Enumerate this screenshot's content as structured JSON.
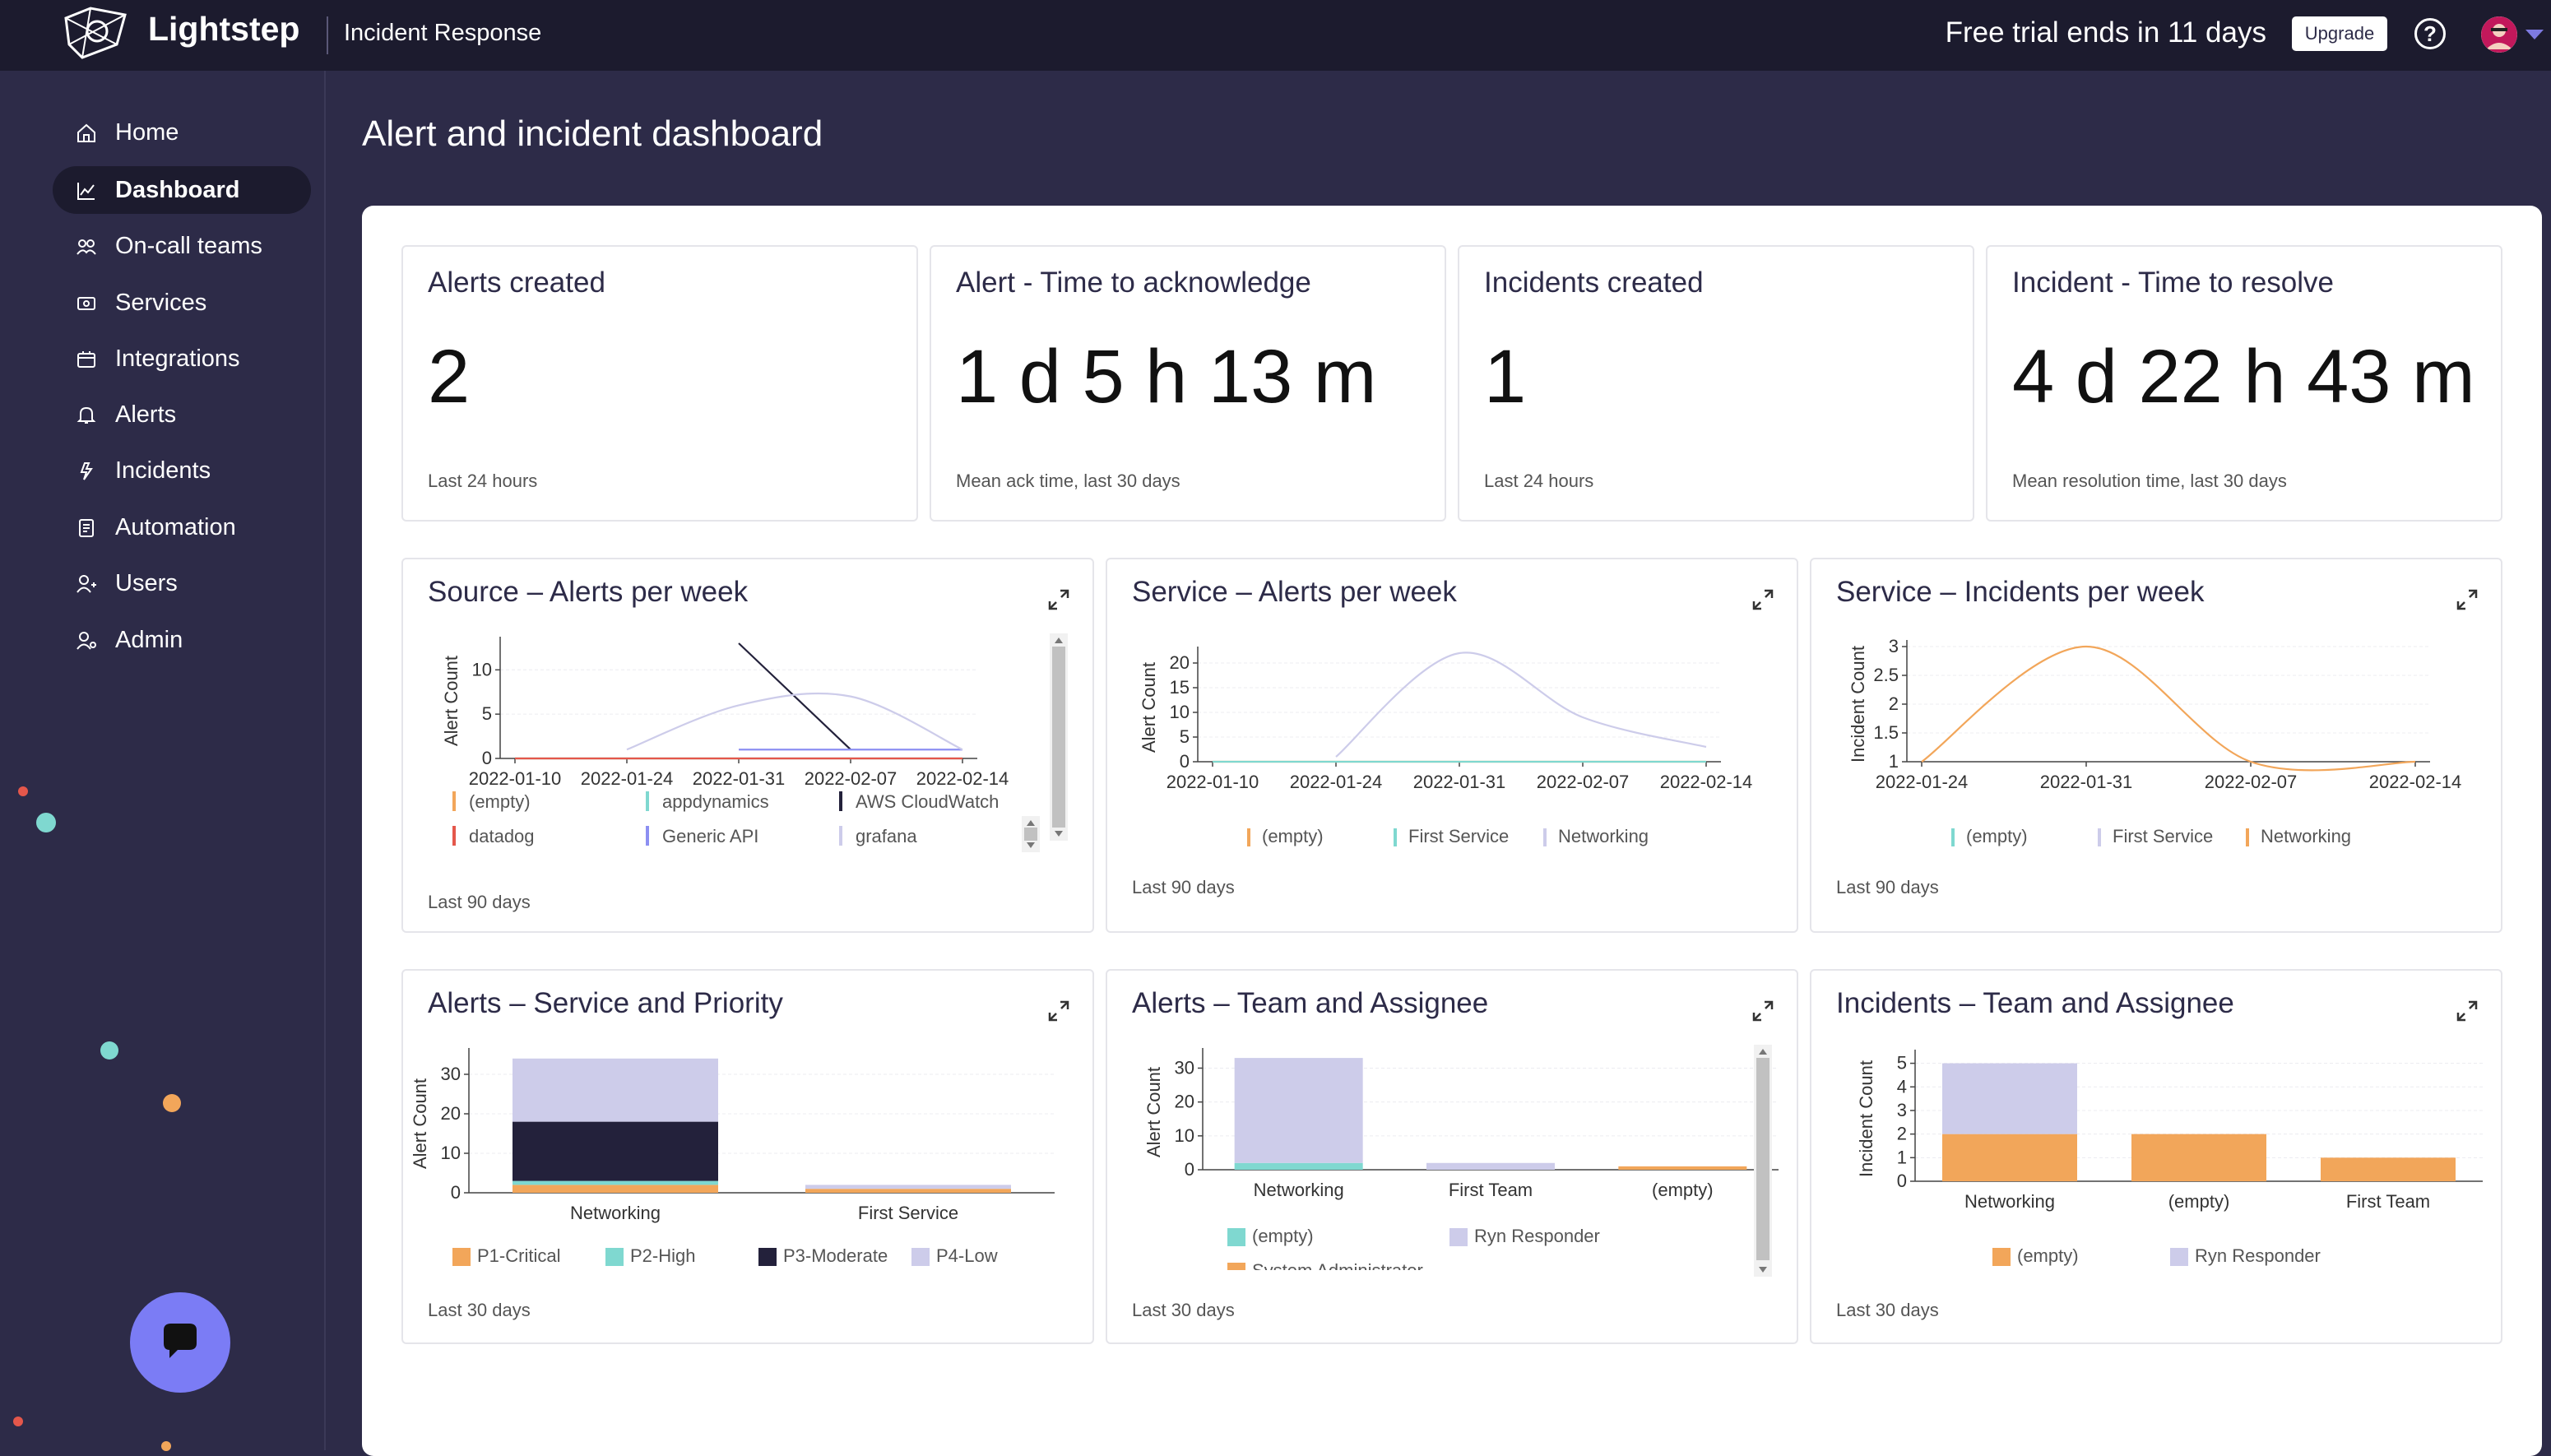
{
  "header": {
    "brand": "Lightstep",
    "product": "Incident Response",
    "trial_text": "Free trial ends in 11 days",
    "upgrade_label": "Upgrade",
    "help_glyph": "?"
  },
  "sidebar": {
    "items": [
      {
        "label": "Home",
        "icon": "home-icon",
        "active": false
      },
      {
        "label": "Dashboard",
        "icon": "chart-line-icon",
        "active": true
      },
      {
        "label": "On-call teams",
        "icon": "team-icon",
        "active": false
      },
      {
        "label": "Services",
        "icon": "services-icon",
        "active": false
      },
      {
        "label": "Integrations",
        "icon": "integrations-icon",
        "active": false
      },
      {
        "label": "Alerts",
        "icon": "bell-icon",
        "active": false
      },
      {
        "label": "Incidents",
        "icon": "lightning-icon",
        "active": false
      },
      {
        "label": "Automation",
        "icon": "automation-icon",
        "active": false
      },
      {
        "label": "Users",
        "icon": "users-icon",
        "active": false
      },
      {
        "label": "Admin",
        "icon": "admin-icon",
        "active": false
      }
    ]
  },
  "page": {
    "title": "Alert and incident dashboard"
  },
  "stats": [
    {
      "title": "Alerts created",
      "value": "2",
      "sub": "Last 24 hours"
    },
    {
      "title": "Alert - Time to acknowledge",
      "value": "1 d 5 h 13 m",
      "sub": "Mean ack time, last 30 days"
    },
    {
      "title": "Incidents created",
      "value": "1",
      "sub": "Last 24 hours"
    },
    {
      "title": "Incident - Time to resolve",
      "value": "4 d 22 h 43 m",
      "sub": "Mean resolution time, last 30 days"
    }
  ],
  "colors": {
    "orange": "#f2a65a",
    "teal": "#7fd8d0",
    "navy": "#23213b",
    "lavender": "#cdccea",
    "blue": "#8c8ff2",
    "red": "#e4574b",
    "sidebar_bg": "#2d2b48",
    "topbar_bg": "#1c1b2e"
  },
  "chart_data": [
    {
      "id": "source-alerts",
      "title": "Source – Alerts per week",
      "type": "line",
      "subtitle": "Last 90 days",
      "ylabel": "Alert Count",
      "yticks": [
        "0",
        "5",
        "10"
      ],
      "ylim": [
        0,
        13
      ],
      "x": [
        "2022-01-10",
        "2022-01-24",
        "2022-01-31",
        "2022-02-07",
        "2022-02-14"
      ],
      "series": [
        {
          "name": "(empty)",
          "color": "#f2a65a",
          "values": [
            0,
            0,
            0,
            0,
            0
          ]
        },
        {
          "name": "appdynamics",
          "color": "#7fd8d0",
          "values": [
            0,
            0,
            0,
            0,
            0
          ]
        },
        {
          "name": "AWS CloudWatch",
          "color": "#23213b",
          "values": [
            null,
            null,
            13,
            1,
            null
          ]
        },
        {
          "name": "datadog",
          "color": "#e4574b",
          "values": [
            0,
            0,
            0,
            0,
            0
          ]
        },
        {
          "name": "Generic API",
          "color": "#8c8ff2",
          "values": [
            null,
            null,
            1,
            1,
            1
          ]
        },
        {
          "name": "grafana",
          "color": "#cdccea",
          "values": [
            null,
            1,
            6,
            7,
            1
          ]
        }
      ]
    },
    {
      "id": "service-alerts",
      "title": "Service – Alerts per week",
      "type": "line",
      "subtitle": "Last 90 days",
      "ylabel": "Alert Count",
      "yticks": [
        "0",
        "5",
        "10",
        "15",
        "20"
      ],
      "ylim": [
        0,
        22
      ],
      "x": [
        "2022-01-10",
        "2022-01-24",
        "2022-01-31",
        "2022-02-07",
        "2022-02-14"
      ],
      "series": [
        {
          "name": "(empty)",
          "color": "#f2a65a",
          "values": [
            0,
            0,
            0,
            0,
            0
          ]
        },
        {
          "name": "First Service",
          "color": "#7fd8d0",
          "values": [
            0,
            0,
            0,
            0,
            0
          ]
        },
        {
          "name": "Networking",
          "color": "#cdccea",
          "values": [
            null,
            1,
            22,
            9,
            3
          ]
        }
      ]
    },
    {
      "id": "service-incidents",
      "title": "Service – Incidents per week",
      "type": "line",
      "subtitle": "Last 90 days",
      "ylabel": "Incident Count",
      "yticks": [
        "1",
        "1.5",
        "2",
        "2.5",
        "3"
      ],
      "ylim": [
        1,
        3
      ],
      "x": [
        "2022-01-24",
        "2022-01-31",
        "2022-02-07",
        "2022-02-14"
      ],
      "series": [
        {
          "name": "(empty)",
          "color": "#7fd8d0",
          "values": [
            null,
            null,
            null,
            null
          ]
        },
        {
          "name": "First Service",
          "color": "#cdccea",
          "values": [
            null,
            null,
            null,
            null
          ]
        },
        {
          "name": "Networking",
          "color": "#f2a65a",
          "values": [
            1,
            3,
            1,
            1
          ]
        }
      ]
    },
    {
      "id": "alerts-service-priority",
      "title": "Alerts – Service and Priority",
      "type": "bar",
      "subtitle": "Last 30 days",
      "ylabel": "Alert Count",
      "yticks": [
        "0",
        "10",
        "20",
        "30"
      ],
      "ylim": [
        0,
        35
      ],
      "categories": [
        "Networking",
        "First Service"
      ],
      "series": [
        {
          "name": "P1-Critical",
          "color": "#f2a65a",
          "values": [
            2,
            1
          ]
        },
        {
          "name": "P2-High",
          "color": "#7fd8d0",
          "values": [
            1,
            0
          ]
        },
        {
          "name": "P3-Moderate",
          "color": "#23213b",
          "values": [
            15,
            0
          ]
        },
        {
          "name": "P4-Low",
          "color": "#cdccea",
          "values": [
            16,
            1
          ]
        }
      ]
    },
    {
      "id": "alerts-team-assignee",
      "title": "Alerts – Team and Assignee",
      "type": "bar",
      "subtitle": "Last 30 days",
      "ylabel": "Alert Count",
      "yticks": [
        "0",
        "10",
        "20",
        "30"
      ],
      "ylim": [
        0,
        34
      ],
      "categories": [
        "Networking",
        "First Team",
        "(empty)"
      ],
      "series": [
        {
          "name": "(empty)",
          "color": "#7fd8d0",
          "values": [
            2,
            0,
            0
          ]
        },
        {
          "name": "Ryn Responder",
          "color": "#cdccea",
          "values": [
            31,
            2,
            0
          ]
        },
        {
          "name": "System Administrator",
          "color": "#f2a65a",
          "values": [
            0,
            0,
            1
          ]
        }
      ]
    },
    {
      "id": "incidents-team-assignee",
      "title": "Incidents – Team and Assignee",
      "type": "bar",
      "subtitle": "Last 30 days",
      "ylabel": "Incident Count",
      "yticks": [
        "0",
        "1",
        "2",
        "3",
        "4",
        "5"
      ],
      "ylim": [
        0,
        5.3
      ],
      "categories": [
        "Networking",
        "(empty)",
        "First Team"
      ],
      "series": [
        {
          "name": "(empty)",
          "color": "#f2a65a",
          "values": [
            2,
            2,
            1
          ]
        },
        {
          "name": "Ryn Responder",
          "color": "#cdccea",
          "values": [
            3,
            0,
            0
          ]
        }
      ]
    }
  ]
}
